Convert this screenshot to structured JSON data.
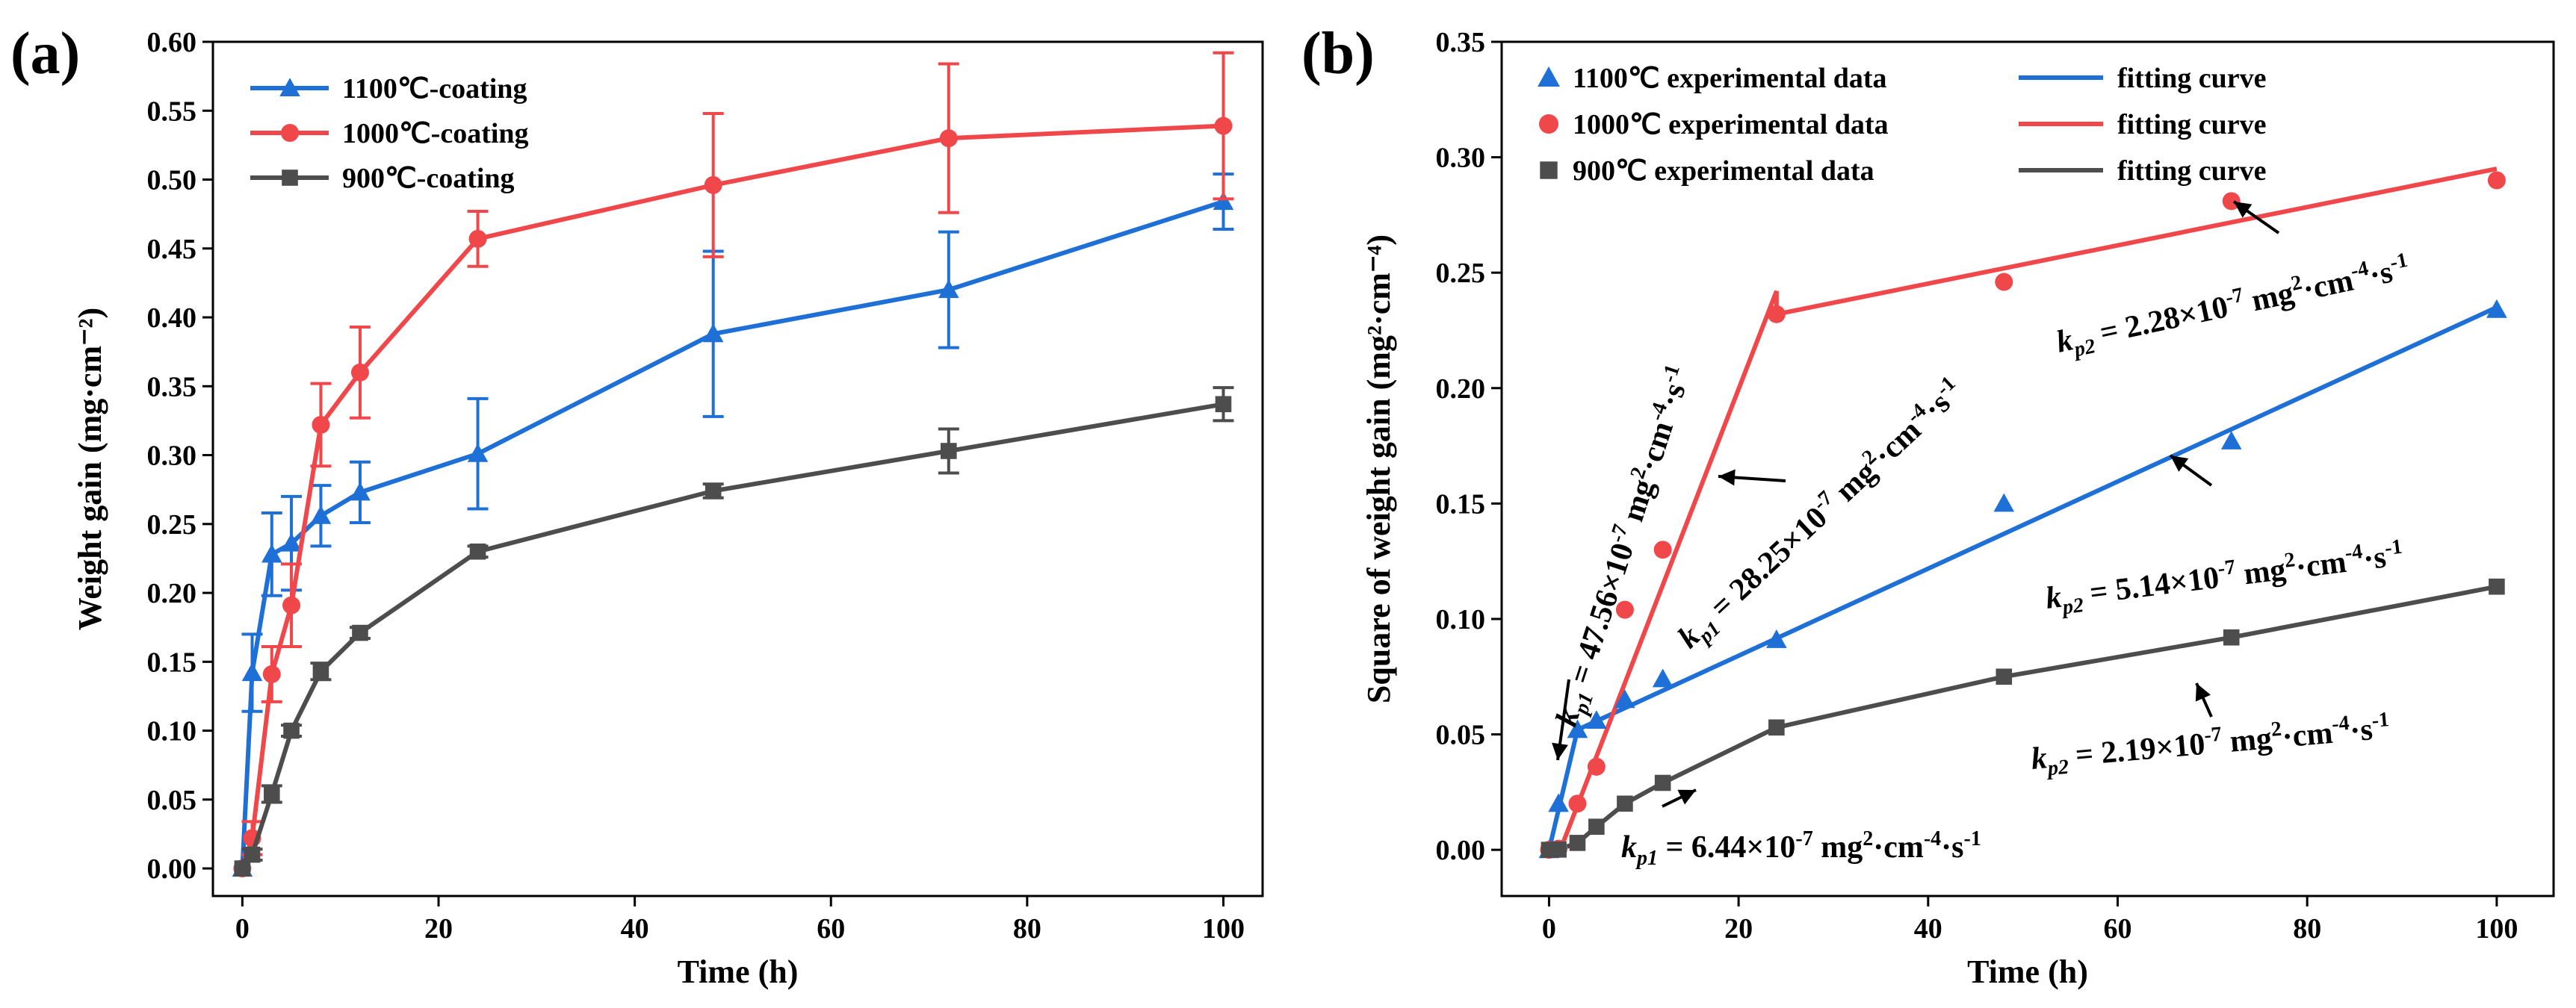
{
  "chart_data": [
    {
      "panel_label": "(a)",
      "type": "line",
      "xlabel": "Time (h)",
      "ylabel": "Weight gain (mg·cm⁻²)",
      "xlim": [
        -3,
        104
      ],
      "ylim": [
        -0.02,
        0.6
      ],
      "xticks": [
        "0",
        "20",
        "40",
        "60",
        "80",
        "100"
      ],
      "xtick_values": [
        0,
        20,
        40,
        60,
        80,
        100
      ],
      "yticks": [
        "0.00",
        "0.05",
        "0.10",
        "0.15",
        "0.20",
        "0.25",
        "0.30",
        "0.35",
        "0.40",
        "0.45",
        "0.50",
        "0.55",
        "0.60"
      ],
      "ytick_values": [
        0,
        0.05,
        0.1,
        0.15,
        0.2,
        0.25,
        0.3,
        0.35,
        0.4,
        0.45,
        0.5,
        0.55,
        0.6
      ],
      "legend_position": "top-left",
      "series": [
        {
          "name": "1100℃-coating",
          "color": "#1e6fd6",
          "marker": "triangle",
          "x": [
            0,
            1,
            3,
            5,
            8,
            12,
            24,
            48,
            72,
            100
          ],
          "y": [
            0,
            0.142,
            0.228,
            0.236,
            0.256,
            0.273,
            0.301,
            0.388,
            0.42,
            0.484
          ],
          "err": [
            0,
            0.028,
            0.03,
            0.034,
            0.022,
            0.022,
            0.04,
            0.06,
            0.042,
            0.02
          ]
        },
        {
          "name": "1000℃-coating",
          "color": "#f0474b",
          "marker": "circle",
          "x": [
            0,
            1,
            3,
            5,
            8,
            12,
            24,
            48,
            72,
            100
          ],
          "y": [
            0,
            0.022,
            0.141,
            0.191,
            0.322,
            0.36,
            0.457,
            0.496,
            0.53,
            0.539
          ],
          "err": [
            0,
            0.012,
            0.02,
            0.03,
            0.03,
            0.033,
            0.02,
            0.052,
            0.054,
            0.053
          ]
        },
        {
          "name": "900℃-coating",
          "color": "#4d4d4d",
          "marker": "square",
          "x": [
            0,
            1,
            3,
            5,
            8,
            12,
            24,
            48,
            72,
            100
          ],
          "y": [
            0,
            0.01,
            0.054,
            0.1,
            0.143,
            0.171,
            0.23,
            0.274,
            0.303,
            0.337
          ],
          "err": [
            0,
            0.004,
            0.006,
            0.004,
            0.006,
            0.004,
            0.004,
            0.005,
            0.016,
            0.012
          ]
        }
      ]
    },
    {
      "panel_label": "(b)",
      "type": "scatter",
      "xlabel": "Time (h)",
      "ylabel": "Square of weight gain (mg²·cm⁻⁴)",
      "xlim": [
        -5,
        106
      ],
      "ylim": [
        -0.02,
        0.35
      ],
      "xticks": [
        "0",
        "20",
        "40",
        "60",
        "80",
        "100"
      ],
      "xtick_values": [
        0,
        20,
        40,
        60,
        80,
        100
      ],
      "yticks": [
        "0.00",
        "0.05",
        "0.10",
        "0.15",
        "0.20",
        "0.25",
        "0.30",
        "0.35"
      ],
      "ytick_values": [
        0,
        0.05,
        0.1,
        0.15,
        0.2,
        0.25,
        0.3,
        0.35
      ],
      "legend_position": "top-left",
      "legend": {
        "points": [
          "1100℃ experimental data",
          "1000℃ experimental data",
          "900℃   experimental data"
        ],
        "lines": [
          "fitting curve",
          "fitting curve",
          "fitting curve"
        ]
      },
      "series": [
        {
          "name": "1100℃ experimental data",
          "color": "#1e6fd6",
          "marker": "triangle",
          "x": [
            0,
            1,
            3,
            5,
            8,
            12,
            24,
            48,
            72,
            100
          ],
          "y": [
            0,
            0.02,
            0.052,
            0.056,
            0.065,
            0.074,
            0.091,
            0.15,
            0.177,
            0.234
          ],
          "fit_x": [
            0,
            3,
            100
          ],
          "fit_y": [
            0,
            0.052,
            0.235
          ]
        },
        {
          "name": "1000℃ experimental data",
          "color": "#f0474b",
          "marker": "circle",
          "x": [
            0,
            1,
            3,
            5,
            8,
            12,
            24,
            48,
            72,
            100
          ],
          "y": [
            0,
            0.0005,
            0.02,
            0.036,
            0.104,
            0.13,
            0.232,
            0.246,
            0.281,
            0.29
          ],
          "fit_x": [
            1,
            24,
            24,
            100
          ],
          "fit_y": [
            -0.002,
            0.242,
            0.232,
            0.295
          ]
        },
        {
          "name": "900℃   experimental data",
          "color": "#4d4d4d",
          "marker": "square",
          "x": [
            0,
            1,
            3,
            5,
            8,
            12,
            24,
            48,
            72,
            100
          ],
          "y": [
            0,
            0.0001,
            0.003,
            0.01,
            0.02,
            0.029,
            0.053,
            0.075,
            0.092,
            0.114
          ],
          "fit_x": [
            0,
            1,
            3,
            5,
            8,
            12,
            24,
            48,
            72,
            100
          ],
          "fit_y": [
            0,
            0.0001,
            0.003,
            0.01,
            0.02,
            0.029,
            0.053,
            0.075,
            0.092,
            0.114
          ]
        }
      ],
      "annotations": [
        {
          "name": "kp1-1100",
          "pre": "k",
          "sub": "p1",
          "mid": " = 47.56×10",
          "sup1": "-7",
          "mid2": " mg",
          "sup2": "2",
          "mid3": "·cm",
          "sup3": "-4",
          "mid4": "·s",
          "sup4": "-1"
        },
        {
          "name": "kp1-1000",
          "pre": "k",
          "sub": "p1",
          "mid": " = 28.25×10",
          "sup1": "-7",
          "mid2": " mg",
          "sup2": "2",
          "mid3": "·cm",
          "sup3": "-4",
          "mid4": "·s",
          "sup4": "-1"
        },
        {
          "name": "kp2-1000",
          "pre": "k",
          "sub": "p2",
          "mid": " = 2.28×10",
          "sup1": "-7",
          "mid2": " mg",
          "sup2": "2",
          "mid3": "·cm",
          "sup3": "-4",
          "mid4": "·s",
          "sup4": "-1"
        },
        {
          "name": "kp2-1100",
          "pre": "k",
          "sub": "p2",
          "mid": " = 5.14×10",
          "sup1": "-7",
          "mid2": " mg",
          "sup2": "2",
          "mid3": "·cm",
          "sup3": "-4",
          "mid4": "·s",
          "sup4": "-1"
        },
        {
          "name": "kp2-900",
          "pre": "k",
          "sub": "p2",
          "mid": " = 2.19×10",
          "sup1": "-7",
          "mid2": " mg",
          "sup2": "2",
          "mid3": "·cm",
          "sup3": "-4",
          "mid4": "·s",
          "sup4": "-1"
        },
        {
          "name": "kp1-900",
          "pre": "k",
          "sub": "p1",
          "mid": " = 6.44×10",
          "sup1": "-7",
          "mid2": " mg",
          "sup2": "2",
          "mid3": "·cm",
          "sup3": "-4",
          "mid4": "·s",
          "sup4": "-1"
        }
      ]
    }
  ]
}
